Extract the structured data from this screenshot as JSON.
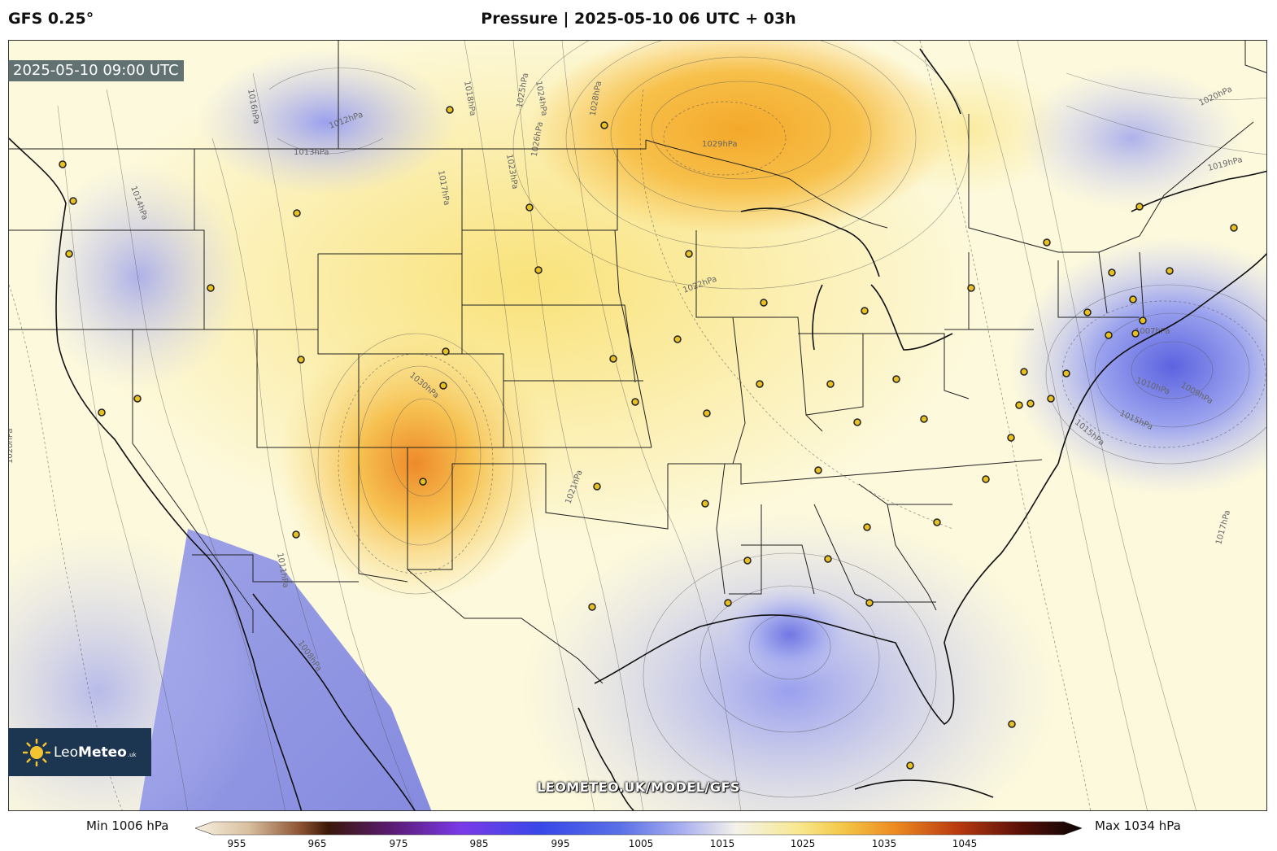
{
  "header": {
    "model": "GFS 0.25°",
    "title": "Pressure | 2025-05-10 06 UTC + 03h"
  },
  "map": {
    "valid_time": "2025-05-10 09:00 UTC",
    "watermark": "LEOMETEO.UK/MODEL/GFS",
    "logo": {
      "name_light": "Leo",
      "name_bold": "Meteo",
      "suffix": ".uk"
    },
    "isobar_labels": [
      {
        "t": "1012hPa"
      },
      {
        "t": "1013hPa"
      },
      {
        "t": "1018hPa"
      },
      {
        "t": "1016hPa"
      },
      {
        "t": "1020hPa"
      },
      {
        "t": "1014hPa"
      },
      {
        "t": "1015hPa"
      },
      {
        "t": "1019hPa"
      },
      {
        "t": "1024hPa"
      },
      {
        "t": "1025hPa"
      },
      {
        "t": "1026hPa"
      },
      {
        "t": "1028hPa"
      },
      {
        "t": "1029hPa"
      },
      {
        "t": "1023hPa"
      },
      {
        "t": "1017hPa"
      },
      {
        "t": "1022hPa"
      },
      {
        "t": "1030hPa"
      },
      {
        "t": "1021hPa"
      },
      {
        "t": "1011hPa"
      },
      {
        "t": "1010hPa"
      },
      {
        "t": "1008hPa"
      },
      {
        "t": "1007hPa"
      },
      {
        "t": "1009hPa"
      }
    ],
    "colors": {
      "low": "#6f79e6",
      "mid_low": "#c9cdf6",
      "neutral": "#fdfae4",
      "mid_high": "#f9e07a",
      "high": "#f4b030"
    }
  },
  "colorbar": {
    "min_label": "Min 1006 hPa",
    "max_label": "Max 1034 hPa",
    "ticks": [
      "955",
      "965",
      "975",
      "985",
      "995",
      "1005",
      "1015",
      "1025",
      "1035",
      "1045"
    ]
  }
}
